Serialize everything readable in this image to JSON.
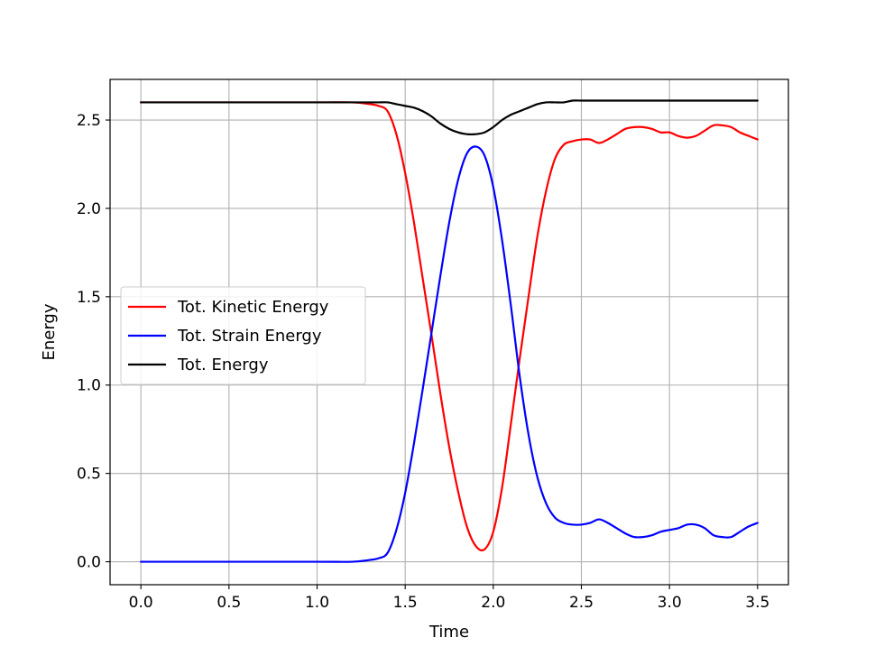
{
  "chart_data": {
    "type": "line",
    "title": "",
    "xlabel": "Time",
    "ylabel": "Energy",
    "xlim": [
      -0.175,
      3.675
    ],
    "ylim": [
      -0.13,
      2.73
    ],
    "xticks": [
      0.0,
      0.5,
      1.0,
      1.5,
      2.0,
      2.5,
      3.0,
      3.5
    ],
    "xtick_labels": [
      "0.0",
      "0.5",
      "1.0",
      "1.5",
      "2.0",
      "2.5",
      "3.0",
      "3.5"
    ],
    "yticks": [
      0.0,
      0.5,
      1.0,
      1.5,
      2.0,
      2.5
    ],
    "ytick_labels": [
      "0.0",
      "0.5",
      "1.0",
      "1.5",
      "2.0",
      "2.5"
    ],
    "grid": true,
    "legend": {
      "position": "center-left"
    },
    "series": [
      {
        "name": "Tot. Kinetic Energy",
        "color": "#ff0000",
        "x": [
          0.0,
          0.5,
          1.0,
          1.2,
          1.3,
          1.35,
          1.4,
          1.45,
          1.5,
          1.55,
          1.6,
          1.65,
          1.7,
          1.75,
          1.8,
          1.85,
          1.9,
          1.95,
          2.0,
          2.05,
          2.1,
          2.15,
          2.2,
          2.25,
          2.3,
          2.35,
          2.4,
          2.45,
          2.5,
          2.55,
          2.6,
          2.65,
          2.7,
          2.75,
          2.8,
          2.85,
          2.9,
          2.95,
          3.0,
          3.05,
          3.1,
          3.15,
          3.2,
          3.25,
          3.3,
          3.35,
          3.4,
          3.45,
          3.5
        ],
        "y": [
          2.6,
          2.6,
          2.6,
          2.6,
          2.59,
          2.58,
          2.55,
          2.42,
          2.2,
          1.92,
          1.6,
          1.28,
          0.95,
          0.65,
          0.4,
          0.2,
          0.09,
          0.07,
          0.17,
          0.42,
          0.78,
          1.15,
          1.5,
          1.84,
          2.1,
          2.28,
          2.36,
          2.38,
          2.39,
          2.39,
          2.37,
          2.39,
          2.42,
          2.45,
          2.46,
          2.46,
          2.45,
          2.43,
          2.43,
          2.41,
          2.4,
          2.41,
          2.44,
          2.47,
          2.47,
          2.46,
          2.43,
          2.41,
          2.39
        ]
      },
      {
        "name": "Tot. Strain Energy",
        "color": "#0000ff",
        "x": [
          0.0,
          0.5,
          1.0,
          1.2,
          1.3,
          1.35,
          1.4,
          1.45,
          1.5,
          1.55,
          1.6,
          1.65,
          1.7,
          1.75,
          1.8,
          1.85,
          1.9,
          1.95,
          2.0,
          2.05,
          2.1,
          2.15,
          2.2,
          2.25,
          2.3,
          2.35,
          2.4,
          2.45,
          2.5,
          2.55,
          2.6,
          2.65,
          2.7,
          2.75,
          2.8,
          2.85,
          2.9,
          2.95,
          3.0,
          3.05,
          3.1,
          3.15,
          3.2,
          3.25,
          3.3,
          3.35,
          3.4,
          3.45,
          3.5
        ],
        "y": [
          0.0,
          0.0,
          0.0,
          0.0,
          0.01,
          0.02,
          0.05,
          0.18,
          0.39,
          0.67,
          0.98,
          1.3,
          1.62,
          1.92,
          2.16,
          2.31,
          2.35,
          2.3,
          2.12,
          1.82,
          1.45,
          1.05,
          0.72,
          0.48,
          0.33,
          0.25,
          0.22,
          0.21,
          0.21,
          0.22,
          0.24,
          0.22,
          0.19,
          0.16,
          0.14,
          0.14,
          0.15,
          0.17,
          0.18,
          0.19,
          0.21,
          0.21,
          0.19,
          0.15,
          0.14,
          0.14,
          0.17,
          0.2,
          0.22
        ]
      },
      {
        "name": "Tot. Energy",
        "color": "#000000",
        "x": [
          0.0,
          0.5,
          1.0,
          1.2,
          1.3,
          1.35,
          1.4,
          1.45,
          1.5,
          1.55,
          1.6,
          1.65,
          1.7,
          1.75,
          1.8,
          1.85,
          1.9,
          1.95,
          2.0,
          2.05,
          2.1,
          2.15,
          2.2,
          2.25,
          2.3,
          2.35,
          2.4,
          2.45,
          2.5,
          2.55,
          2.6,
          2.65,
          2.7,
          2.75,
          2.8,
          2.85,
          2.9,
          2.95,
          3.0,
          3.05,
          3.1,
          3.15,
          3.2,
          3.25,
          3.3,
          3.35,
          3.4,
          3.45,
          3.5
        ],
        "y": [
          2.6,
          2.6,
          2.6,
          2.6,
          2.6,
          2.6,
          2.6,
          2.59,
          2.58,
          2.57,
          2.55,
          2.52,
          2.48,
          2.45,
          2.43,
          2.42,
          2.42,
          2.43,
          2.46,
          2.5,
          2.53,
          2.55,
          2.57,
          2.59,
          2.6,
          2.6,
          2.6,
          2.61,
          2.61,
          2.61,
          2.61,
          2.61,
          2.61,
          2.61,
          2.61,
          2.61,
          2.61,
          2.61,
          2.61,
          2.61,
          2.61,
          2.61,
          2.61,
          2.61,
          2.61,
          2.61,
          2.61,
          2.61,
          2.61
        ]
      }
    ]
  }
}
